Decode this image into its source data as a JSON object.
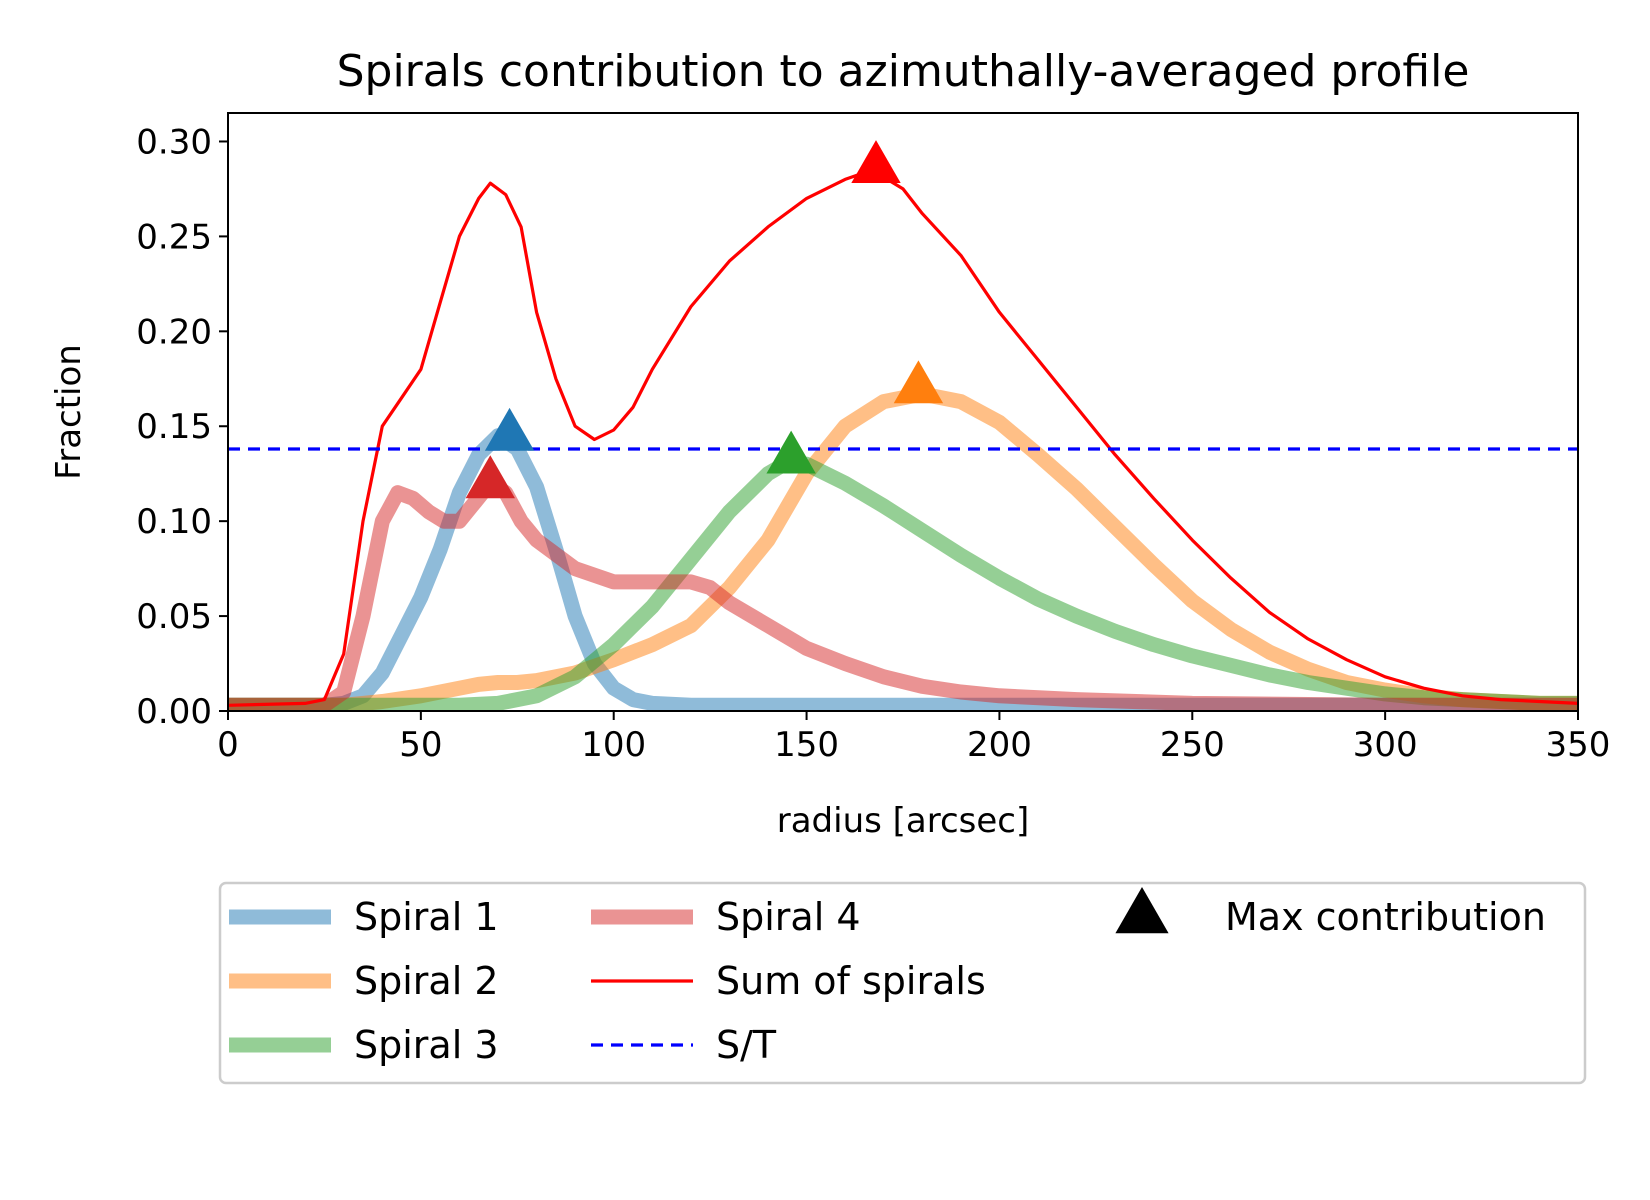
{
  "chart_data": {
    "type": "line",
    "title": "Spirals contribution to azimuthally-averaged profile",
    "xlabel": "radius [arcsec]",
    "ylabel": "Fraction",
    "xlim": [
      0,
      350
    ],
    "ylim": [
      0,
      0.315
    ],
    "xticks": [
      0,
      50,
      100,
      150,
      200,
      250,
      300,
      350
    ],
    "xtick_labels": [
      "0",
      "50",
      "100",
      "150",
      "200",
      "250",
      "300",
      "350"
    ],
    "yticks": [
      0,
      0.05,
      0.1,
      0.15,
      0.2,
      0.25,
      0.3
    ],
    "ytick_labels": [
      "0.00",
      "0.05",
      "0.10",
      "0.15",
      "0.20",
      "0.25",
      "0.30"
    ],
    "grid": false,
    "legend_position": "below plot",
    "series": [
      {
        "name": "Spiral 1",
        "color": "#1f77b4",
        "style": "thick-translucent",
        "x": [
          0,
          25,
          30,
          35,
          40,
          45,
          50,
          55,
          60,
          65,
          70,
          75,
          80,
          85,
          90,
          95,
          100,
          105,
          110,
          120,
          140,
          160,
          200,
          250,
          300,
          350
        ],
        "y": [
          0.003,
          0.003,
          0.004,
          0.008,
          0.02,
          0.04,
          0.06,
          0.085,
          0.115,
          0.135,
          0.145,
          0.138,
          0.118,
          0.085,
          0.05,
          0.025,
          0.012,
          0.006,
          0.004,
          0.003,
          0.003,
          0.003,
          0.003,
          0.003,
          0.003,
          0.003
        ]
      },
      {
        "name": "Spiral 2",
        "color": "#ff7f0e",
        "style": "thick-translucent",
        "x": [
          0,
          30,
          40,
          50,
          60,
          65,
          70,
          75,
          80,
          90,
          100,
          110,
          120,
          130,
          140,
          150,
          160,
          170,
          180,
          190,
          200,
          210,
          220,
          230,
          240,
          250,
          260,
          270,
          280,
          290,
          300,
          310,
          320,
          330,
          340,
          350
        ],
        "y": [
          0.003,
          0.003,
          0.005,
          0.008,
          0.012,
          0.014,
          0.015,
          0.015,
          0.016,
          0.02,
          0.027,
          0.035,
          0.045,
          0.065,
          0.09,
          0.125,
          0.15,
          0.163,
          0.167,
          0.163,
          0.152,
          0.135,
          0.117,
          0.097,
          0.077,
          0.058,
          0.043,
          0.031,
          0.022,
          0.015,
          0.011,
          0.008,
          0.006,
          0.005,
          0.004,
          0.004
        ]
      },
      {
        "name": "Spiral 3",
        "color": "#2ca02c",
        "style": "thick-translucent",
        "x": [
          0,
          50,
          60,
          70,
          80,
          90,
          100,
          110,
          120,
          130,
          140,
          145,
          150,
          160,
          170,
          180,
          190,
          200,
          210,
          220,
          230,
          240,
          250,
          260,
          270,
          280,
          290,
          300,
          310,
          320,
          330,
          340,
          350
        ],
        "y": [
          0.003,
          0.003,
          0.003,
          0.004,
          0.008,
          0.018,
          0.035,
          0.055,
          0.08,
          0.105,
          0.125,
          0.131,
          0.13,
          0.12,
          0.108,
          0.095,
          0.082,
          0.07,
          0.059,
          0.05,
          0.042,
          0.035,
          0.029,
          0.024,
          0.019,
          0.015,
          0.012,
          0.009,
          0.007,
          0.006,
          0.005,
          0.004,
          0.004
        ]
      },
      {
        "name": "Spiral 4",
        "color": "#d62728",
        "style": "thick-translucent",
        "x": [
          0,
          25,
          30,
          35,
          40,
          44,
          48,
          52,
          56,
          60,
          64,
          68,
          72,
          76,
          80,
          90,
          100,
          110,
          120,
          125,
          130,
          140,
          150,
          160,
          170,
          180,
          190,
          200,
          220,
          250,
          300,
          350
        ],
        "y": [
          0.003,
          0.003,
          0.01,
          0.05,
          0.1,
          0.115,
          0.112,
          0.105,
          0.1,
          0.1,
          0.11,
          0.12,
          0.115,
          0.1,
          0.09,
          0.075,
          0.068,
          0.068,
          0.068,
          0.065,
          0.057,
          0.045,
          0.033,
          0.025,
          0.018,
          0.013,
          0.01,
          0.008,
          0.006,
          0.004,
          0.003,
          0.003
        ]
      },
      {
        "name": "Sum of spirals",
        "color": "#ff0000",
        "style": "thin",
        "x": [
          0,
          20,
          25,
          30,
          35,
          40,
          45,
          50,
          55,
          60,
          65,
          68,
          72,
          76,
          80,
          85,
          90,
          95,
          100,
          105,
          110,
          120,
          130,
          140,
          150,
          160,
          167,
          175,
          180,
          190,
          200,
          210,
          220,
          230,
          240,
          250,
          260,
          270,
          280,
          290,
          300,
          310,
          320,
          330,
          340,
          350
        ],
        "y": [
          0.003,
          0.004,
          0.006,
          0.03,
          0.1,
          0.15,
          0.165,
          0.18,
          0.215,
          0.25,
          0.27,
          0.278,
          0.272,
          0.255,
          0.21,
          0.175,
          0.15,
          0.143,
          0.148,
          0.16,
          0.18,
          0.213,
          0.237,
          0.255,
          0.27,
          0.28,
          0.285,
          0.275,
          0.262,
          0.24,
          0.21,
          0.185,
          0.16,
          0.135,
          0.112,
          0.09,
          0.07,
          0.052,
          0.038,
          0.027,
          0.018,
          0.012,
          0.008,
          0.006,
          0.005,
          0.004
        ]
      }
    ],
    "reference_line": {
      "name": "S/T",
      "y": 0.138,
      "color": "#0000ff",
      "style": "dashed"
    },
    "max_markers": {
      "legend_label": "Max contribution",
      "legend_color": "#000000",
      "points": [
        {
          "series": "Spiral 1",
          "x": 73,
          "y": 0.146,
          "color": "#1f77b4"
        },
        {
          "series": "Spiral 2",
          "x": 179,
          "y": 0.171,
          "color": "#ff7f0e"
        },
        {
          "series": "Spiral 3",
          "x": 146,
          "y": 0.134,
          "color": "#2ca02c"
        },
        {
          "series": "Spiral 4",
          "x": 68,
          "y": 0.121,
          "color": "#d62728"
        },
        {
          "series": "Sum of spirals",
          "x": 168,
          "y": 0.287,
          "color": "#ff0000"
        }
      ]
    }
  }
}
